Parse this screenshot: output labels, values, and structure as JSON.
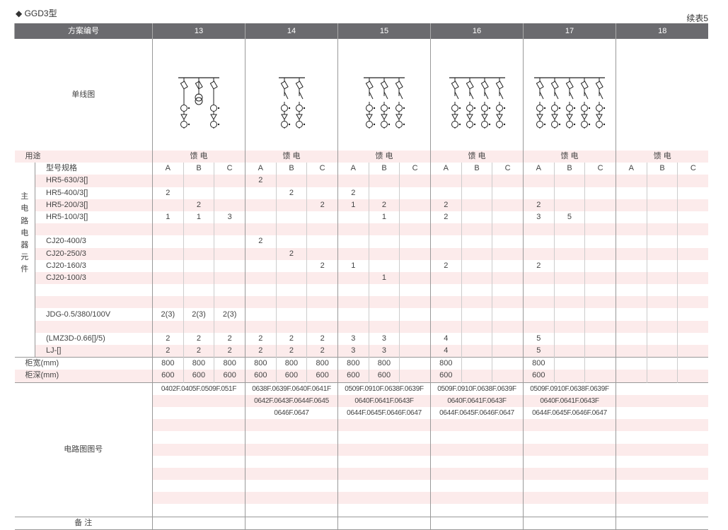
{
  "title": "◆ GGD3型",
  "continued": "续表5",
  "header": {
    "label": "方案编号",
    "schemes": [
      "13",
      "14",
      "15",
      "16",
      "17",
      "18"
    ]
  },
  "diagram_label": "单线图",
  "purpose": {
    "label": "用途",
    "values": [
      "馈 电",
      "馈 电",
      "馈 电",
      "馈 电",
      "馈 电",
      "馈 电"
    ]
  },
  "spec_label": "型号规格",
  "sub_columns": [
    "A",
    "B",
    "C"
  ],
  "side_label": [
    "主",
    "电",
    "路",
    "电",
    "器",
    "元",
    "件"
  ],
  "rows": [
    {
      "name": "HR5-630/3[]",
      "values": [
        "",
        "",
        "",
        "2",
        "",
        "",
        "",
        "",
        "",
        "",
        "",
        "",
        "",
        "",
        "",
        "",
        "",
        ""
      ]
    },
    {
      "name": "HR5-400/3[]",
      "values": [
        "2",
        "",
        "",
        "",
        "2",
        "",
        "2",
        "",
        "",
        "",
        "",
        "",
        "",
        "",
        "",
        "",
        "",
        ""
      ]
    },
    {
      "name": "HR5-200/3[]",
      "values": [
        "",
        "2",
        "",
        "",
        "",
        "2",
        "1",
        "2",
        "",
        "2",
        "",
        "",
        "2",
        "",
        "",
        "",
        "",
        ""
      ]
    },
    {
      "name": "HR5-100/3[]",
      "values": [
        "1",
        "1",
        "3",
        "",
        "",
        "",
        "",
        "1",
        "",
        "2",
        "",
        "",
        "3",
        "5",
        "",
        "",
        "",
        ""
      ]
    },
    {
      "name": "",
      "values": []
    },
    {
      "name": "CJ20-400/3",
      "values": [
        "",
        "",
        "",
        "2",
        "",
        "",
        "",
        "",
        "",
        "",
        "",
        "",
        "",
        "",
        "",
        "",
        "",
        ""
      ]
    },
    {
      "name": "CJ20-250/3",
      "values": [
        "",
        "",
        "",
        "",
        "2",
        "",
        "",
        "",
        "",
        "",
        "",
        "",
        "",
        "",
        "",
        "",
        "",
        ""
      ]
    },
    {
      "name": "CJ20-160/3",
      "values": [
        "",
        "",
        "",
        "",
        "",
        "2",
        "1",
        "",
        "",
        "2",
        "",
        "",
        "2",
        "",
        "",
        "",
        "",
        ""
      ]
    },
    {
      "name": "CJ20-100/3",
      "values": [
        "",
        "",
        "",
        "",
        "",
        "",
        "",
        "1",
        "",
        "",
        "",
        "",
        "",
        "",
        "",
        "",
        "",
        ""
      ]
    },
    {
      "name": "",
      "values": []
    },
    {
      "name": "",
      "values": []
    },
    {
      "name": "JDG-0.5/380/100V",
      "values": [
        "2(3)",
        "2(3)",
        "2(3)",
        "",
        "",
        "",
        "",
        "",
        "",
        "",
        "",
        "",
        "",
        "",
        "",
        "",
        "",
        ""
      ]
    },
    {
      "name": "",
      "values": []
    },
    {
      "name": "(LMZ3D-0.66[]/5)",
      "values": [
        "2",
        "2",
        "2",
        "2",
        "2",
        "2",
        "3",
        "3",
        "",
        "4",
        "",
        "",
        "5",
        "",
        "",
        "",
        "",
        ""
      ]
    },
    {
      "name": "LJ-[]",
      "values": [
        "2",
        "2",
        "2",
        "2",
        "2",
        "2",
        "3",
        "3",
        "",
        "4",
        "",
        "",
        "5",
        "",
        "",
        "",
        "",
        ""
      ]
    }
  ],
  "dims": [
    {
      "name": "柜宽(mm)",
      "values": [
        "800",
        "800",
        "800",
        "800",
        "800",
        "800",
        "800",
        "800",
        "",
        "800",
        "",
        "",
        "800",
        "",
        "",
        "",
        "",
        ""
      ]
    },
    {
      "name": "柜深(mm)",
      "values": [
        "600",
        "600",
        "600",
        "600",
        "600",
        "600",
        "600",
        "600",
        "",
        "600",
        "",
        "",
        "600",
        "",
        "",
        "",
        "",
        ""
      ]
    }
  ],
  "circuit": {
    "label": "电路图图号",
    "lines": [
      [
        "0402F.0405F.0509F.051F",
        "",
        "",
        ""
      ],
      [
        "0638F.0639F.0640F.0641F",
        "0642F.0643F.0644F.0645",
        "0646F.0647"
      ],
      [
        "0509F.0910F.0638F.0639F",
        "0640F.0641F.0643F",
        "0644F.0645F.0646F.0647"
      ],
      [
        "0509F.0910F.0638F.0639F",
        "0640F.0641F.0643F",
        "0644F.0645F.0646F.0647"
      ],
      [
        "0509F.0910F.0638F.0639F",
        "0640F.0641F.0643F",
        "0644F.0645F.0646F.0647"
      ],
      []
    ]
  },
  "remark": "备 注"
}
